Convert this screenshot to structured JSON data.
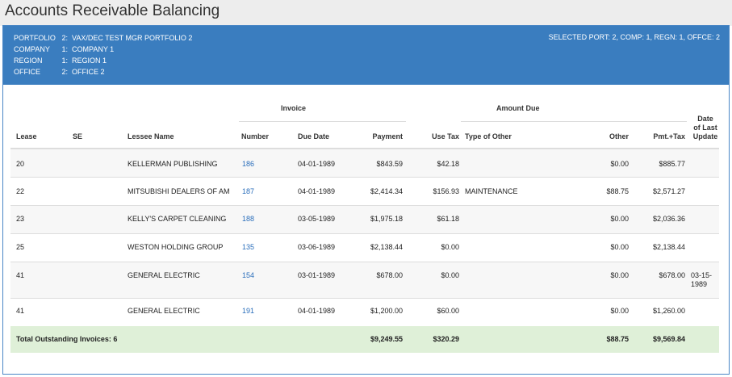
{
  "page": {
    "title": "Accounts Receivable Balancing"
  },
  "context": {
    "rows": [
      {
        "label": "PORTFOLIO",
        "code": "2:",
        "name": "VAX/DEC TEST MGR PORTFOLIO 2"
      },
      {
        "label": "COMPANY",
        "code": "1:",
        "name": "COMPANY 1"
      },
      {
        "label": "REGION",
        "code": "1:",
        "name": "REGION 1"
      },
      {
        "label": "OFFICE",
        "code": "2:",
        "name": "OFFICE 2"
      }
    ],
    "summary": "SELECTED PORT: 2, COMP: 1, REGN: 1, OFFCE: 2"
  },
  "table": {
    "group_invoice": "Invoice",
    "group_amount_due": "Amount Due",
    "col_lease": "Lease",
    "col_se": "SE",
    "col_lessee": "Lessee Name",
    "col_number": "Number",
    "col_due": "Due Date",
    "col_payment": "Payment",
    "col_usetax": "Use Tax",
    "col_type": "Type of Other",
    "col_other": "Other",
    "col_pmt": "Pmt.+Tax",
    "col_update_1": "Date",
    "col_update_2": "of Last",
    "col_update_3": "Update",
    "rows": [
      {
        "lease": "20",
        "se": "",
        "lessee": "KELLERMAN PUBLISHING",
        "number": "186",
        "due": "04-01-1989",
        "payment": "$843.59",
        "usetax": "$42.18",
        "type": "",
        "other": "$0.00",
        "pmt": "$885.77",
        "upd1": "",
        "upd2": ""
      },
      {
        "lease": "22",
        "se": "",
        "lessee": "MITSUBISHI DEALERS OF AM",
        "number": "187",
        "due": "04-01-1989",
        "payment": "$2,414.34",
        "usetax": "$156.93",
        "type": "MAINTENANCE",
        "other": "$88.75",
        "pmt": "$2,571.27",
        "upd1": "",
        "upd2": ""
      },
      {
        "lease": "23",
        "se": "",
        "lessee": "KELLY'S CARPET CLEANING",
        "number": "188",
        "due": "03-05-1989",
        "payment": "$1,975.18",
        "usetax": "$61.18",
        "type": "",
        "other": "$0.00",
        "pmt": "$2,036.36",
        "upd1": "",
        "upd2": ""
      },
      {
        "lease": "25",
        "se": "",
        "lessee": "WESTON HOLDING GROUP",
        "number": "135",
        "due": "03-06-1989",
        "payment": "$2,138.44",
        "usetax": "$0.00",
        "type": "",
        "other": "$0.00",
        "pmt": "$2,138.44",
        "upd1": "",
        "upd2": ""
      },
      {
        "lease": "41",
        "se": "",
        "lessee": "GENERAL ELECTRIC",
        "number": "154",
        "due": "03-01-1989",
        "payment": "$678.00",
        "usetax": "$0.00",
        "type": "",
        "other": "$0.00",
        "pmt": "$678.00",
        "upd1": "03-15-",
        "upd2": "1989"
      },
      {
        "lease": "41",
        "se": "",
        "lessee": "GENERAL ELECTRIC",
        "number": "191",
        "due": "04-01-1989",
        "payment": "$1,200.00",
        "usetax": "$60.00",
        "type": "",
        "other": "$0.00",
        "pmt": "$1,260.00",
        "upd1": "",
        "upd2": ""
      }
    ],
    "total": {
      "label": "Total Outstanding Invoices: 6",
      "payment": "$9,249.55",
      "usetax": "$320.29",
      "other": "$88.75",
      "pmt": "$9,569.84"
    }
  }
}
